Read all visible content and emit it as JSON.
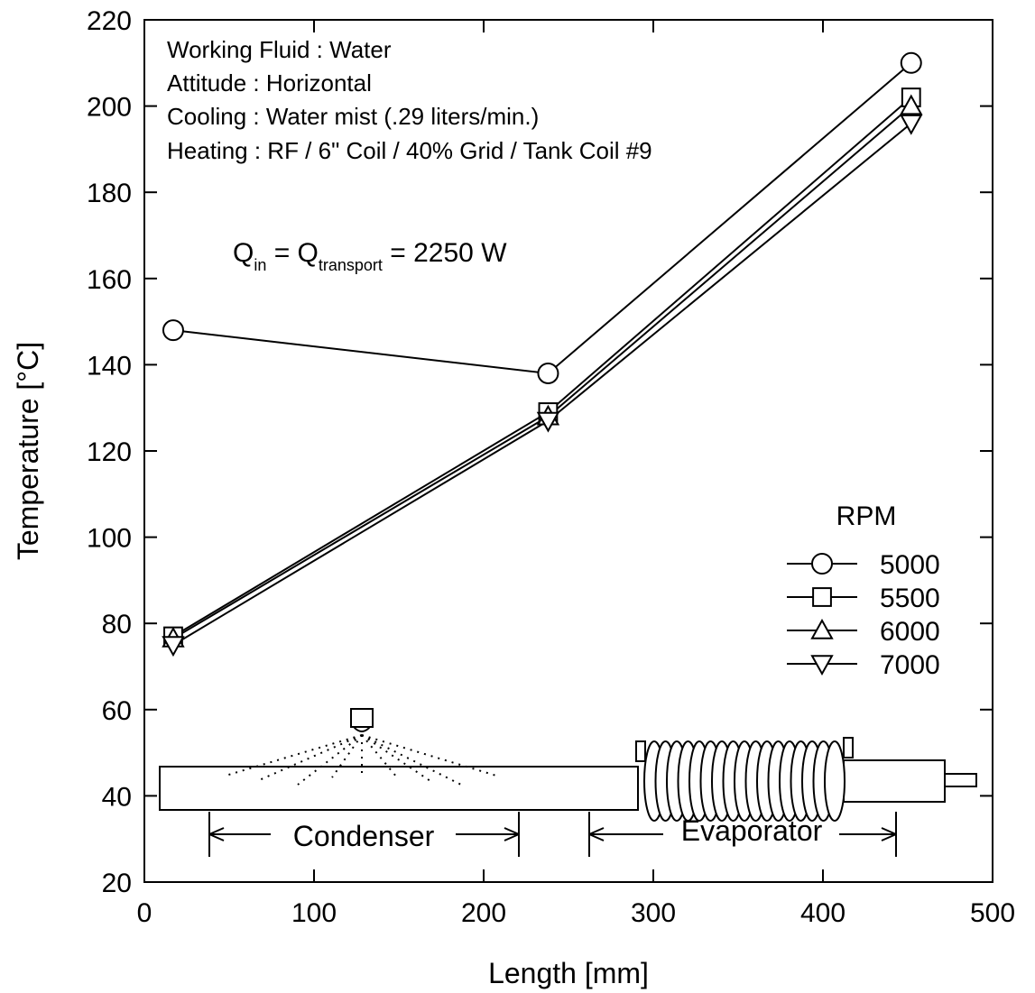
{
  "chart_data": {
    "type": "line",
    "x_label": "Length [mm]",
    "y_label": "Temperature [°C]",
    "annotations": [
      "Working Fluid : Water",
      "Attitude : Horizontal",
      "Cooling : Water mist (.29 liters/min.)",
      "Heating : RF / 6\" Coil / 40% Grid / Tank Coil #9"
    ],
    "equation": [
      "Q",
      "in",
      " = Q",
      "transport",
      " = 2250 W"
    ],
    "section_labels": [
      "Condenser",
      "Evaporator"
    ],
    "legend_title": "RPM",
    "x": [
      17,
      238,
      452
    ],
    "series": [
      {
        "name": "5000",
        "color": "#000000",
        "marker": "circle",
        "values": [
          148,
          138,
          210
        ]
      },
      {
        "name": "5500",
        "color": "#000000",
        "marker": "square",
        "values": [
          77,
          129,
          202
        ]
      },
      {
        "name": "6000",
        "color": "#000000",
        "marker": "triangle-up",
        "values": [
          76.5,
          128,
          200
        ]
      },
      {
        "name": "7000",
        "color": "#000000",
        "marker": "triangle-down",
        "values": [
          75,
          127,
          196
        ]
      }
    ],
    "xlim": [
      0,
      500
    ],
    "xticks": [
      0,
      100,
      200,
      300,
      400,
      500
    ],
    "ylim": [
      20,
      220
    ],
    "yticks": [
      20,
      40,
      60,
      80,
      100,
      120,
      140,
      160,
      180,
      200,
      220
    ],
    "grid": false,
    "legend_position": "right"
  }
}
